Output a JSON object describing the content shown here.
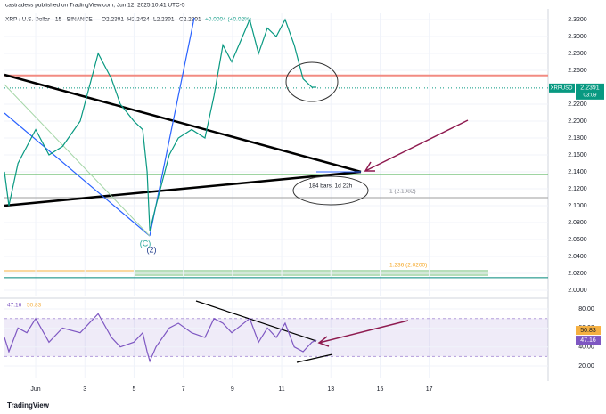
{
  "header": {
    "publisher": "castradess published on TradingView.com, Jun 12, 2025 10:41 UTC-5",
    "symbol": "XRP / U.S. Dollar · 15 · BINANCE",
    "open": "O2.2391",
    "high": "H2.2424",
    "low": "L2.2391",
    "close": "C2.2391",
    "change": "+0.0004 (+0.02%)"
  },
  "chart_data": [
    {
      "type": "line",
      "name": "XRPUSD",
      "color": "#089981",
      "x": [
        -0.27,
        -0.09,
        0.28,
        0.64,
        1,
        1.54,
        2.09,
        2.81,
        3.54,
        4.08,
        4.44,
        4.99,
        5.35,
        5.53,
        5.64,
        5.89,
        6.43,
        6.8,
        7.34,
        7.88,
        8.25,
        8.61,
        8.97,
        9.7,
        10.06,
        10.42,
        10.78,
        11.14,
        11.51,
        11.87,
        12.23,
        12.41
      ],
      "values": [
        2.14,
        2.1,
        2.15,
        2.17,
        2.19,
        2.16,
        2.17,
        2.2,
        2.28,
        2.25,
        2.22,
        2.2,
        2.19,
        2.14,
        2.07,
        2.1,
        2.16,
        2.18,
        2.19,
        2.18,
        2.23,
        2.29,
        2.27,
        2.32,
        2.28,
        2.31,
        2.3,
        2.32,
        2.29,
        2.25,
        2.24,
        2.24
      ],
      "xlim": [
        -0.27,
        21.83
      ],
      "xticks": [
        {
          "value": 1,
          "label": "Jun"
        },
        3,
        5,
        7,
        9,
        11,
        13,
        15,
        17
      ],
      "ylim": [
        1.9926,
        2.3274
      ],
      "yticks": [
        {
          "value": 2.32,
          "label": "2.3200"
        },
        {
          "value": 2.3,
          "label": "2.3000"
        },
        {
          "value": 2.28,
          "label": "2.2800"
        },
        {
          "value": 2.26,
          "label": "2.2600"
        },
        {
          "value": 2.22,
          "label": "2.2200"
        },
        {
          "value": 2.2,
          "label": "2.2000"
        },
        {
          "value": 2.18,
          "label": "2.1800"
        },
        {
          "value": 2.16,
          "label": "2.1600"
        },
        {
          "value": 2.14,
          "label": "2.1400"
        },
        {
          "value": 2.12,
          "label": "2.1200"
        },
        {
          "value": 2.1,
          "label": "2.1000"
        },
        {
          "value": 2.08,
          "label": "2.0800"
        },
        {
          "value": 2.06,
          "label": "2.0600"
        },
        {
          "value": 2.04,
          "label": "2.0400"
        },
        {
          "value": 2.02,
          "label": "2.0200"
        },
        {
          "value": 2,
          "label": "2.0000"
        }
      ],
      "grid": true,
      "last_price": {
        "value": 2.2391,
        "label": "2.2391"
      },
      "price_tag": "XRPUSD",
      "countdown": "03:09",
      "levels": [
        {
          "value": 2.254,
          "color": "#f28b82"
        },
        {
          "value": 2.137,
          "color": "#66bb6a"
        },
        {
          "value": 2.1095,
          "color": "#9e9e9e"
        },
        {
          "value": 2.0148,
          "color": "#00897b"
        }
      ],
      "annotations": [
        "184 bars, 1d 22h",
        "1 (2.1082)",
        "1.236 (2.0200)",
        "(2)",
        "(C)"
      ]
    },
    {
      "type": "line",
      "name": "RSI",
      "color": "#7e57c2",
      "values": [
        50,
        35,
        60,
        55,
        70,
        45,
        60,
        55,
        75,
        50,
        40,
        45,
        55,
        35,
        25,
        40,
        60,
        65,
        55,
        50,
        70,
        65,
        55,
        70,
        45,
        60,
        50,
        65,
        40,
        35,
        45,
        47.16
      ],
      "ylim": [
        6.9,
        89.4
      ],
      "yticks": [
        {
          "value": 80,
          "label": "80.00"
        },
        {
          "value": 60,
          "label": "60.00"
        },
        {
          "value": 40,
          "label": "40.00"
        },
        {
          "value": 20,
          "label": "20.00"
        }
      ],
      "band": [
        30,
        70
      ],
      "rsi_label": "47.16",
      "ma_label": "50.83"
    }
  ],
  "footer": {
    "brand": "TradingView"
  }
}
